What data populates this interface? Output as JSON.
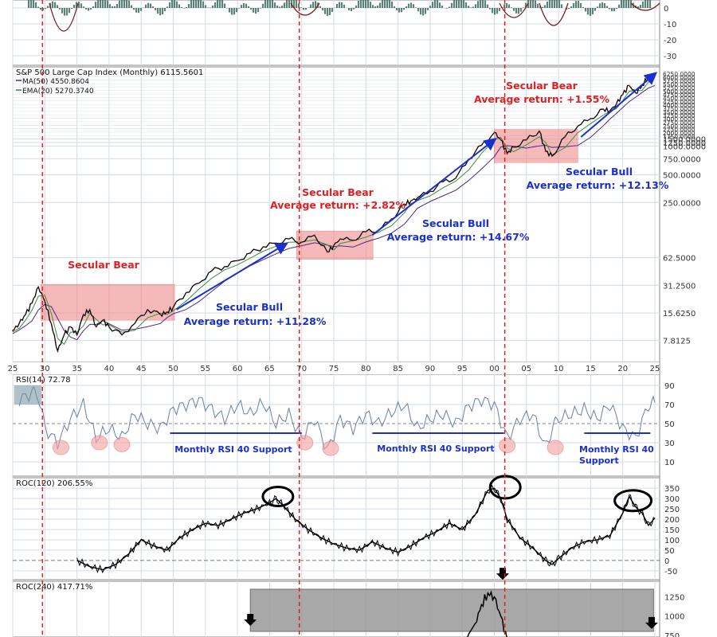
{
  "colors": {
    "grid": "#d3dce6",
    "panel_border": "#8a8a8a",
    "price": "#000000",
    "ma": "#4b2a8a",
    "ema": "#3b8f3b",
    "bear_red": "#e02020",
    "bull_blue": "#1a2fcf",
    "bear_box": "#f08080",
    "rsi_line": "#6a7fa8",
    "rsi_fill": "#6f8f9a",
    "circle_red": "#f4a0a0",
    "gray_box": "#9a9a9a"
  },
  "chart_data": [
    {
      "type": "line",
      "panel": "top_oscillator",
      "y_ticks": [
        "0",
        "-10",
        "-20",
        "-30"
      ],
      "ylim": [
        -35,
        5
      ]
    },
    {
      "type": "line",
      "panel": "price",
      "scale": "log",
      "legend_title": "S&P 500 Large Cap Index (Monthly) 6115.5601",
      "legend": [
        {
          "name": "MA(50) 4550.8604"
        },
        {
          "name": "EMA(20) 5270.3740"
        }
      ],
      "y_ticks": [
        "7.8125",
        "15.6250",
        "31.2500",
        "62.5000",
        "250.0000",
        "500.0000",
        "750.0000",
        "1000.0000",
        "1250.0000",
        "1500.0000",
        "1750.0000",
        "2000.0000",
        "2250.0000",
        "2500.0000",
        "2750.0000",
        "3000.0000",
        "3250.0000",
        "3500.0000",
        "3750.0000",
        "4000.0000",
        "4250.0000",
        "4500.0000",
        "4750.0000",
        "5000.0000",
        "5250.0000",
        "5500.0000",
        "5750.0000",
        "6000.0000",
        "6250.0000"
      ],
      "x_ticks": [
        "25",
        "30",
        "35",
        "40",
        "45",
        "50",
        "55",
        "60",
        "65",
        "70",
        "75",
        "80",
        "85",
        "90",
        "95",
        "00",
        "05",
        "10",
        "15",
        "20",
        "25"
      ],
      "x": [
        1925,
        1926,
        1927,
        1928,
        1929,
        1930,
        1931,
        1932,
        1933,
        1934,
        1935,
        1936,
        1937,
        1938,
        1939,
        1940,
        1942,
        1944,
        1946,
        1948,
        1949,
        1950,
        1952,
        1954,
        1956,
        1958,
        1960,
        1962,
        1964,
        1966,
        1968,
        1970,
        1972,
        1974,
        1975,
        1976,
        1978,
        1980,
        1982,
        1984,
        1986,
        1987,
        1988,
        1990,
        1992,
        1994,
        1996,
        1998,
        2000,
        2001,
        2002,
        2003,
        2005,
        2007,
        2008,
        2009,
        2011,
        2013,
        2015,
        2017,
        2018,
        2019,
        2020,
        2021,
        2022,
        2023,
        2024,
        2025
      ],
      "values": [
        10,
        12,
        15,
        20,
        30,
        21,
        12,
        6,
        9,
        11,
        9,
        15,
        17,
        11,
        13,
        11,
        9,
        12,
        17,
        15,
        16,
        18,
        26,
        33,
        45,
        50,
        58,
        70,
        82,
        90,
        100,
        92,
        110,
        72,
        85,
        100,
        97,
        120,
        125,
        165,
        240,
        260,
        280,
        330,
        420,
        460,
        740,
        1050,
        1450,
        1200,
        850,
        1000,
        1200,
        1500,
        900,
        800,
        1300,
        1700,
        2050,
        2600,
        2500,
        2950,
        3750,
        4700,
        3900,
        4700,
        5900,
        6100
      ],
      "annotations": [
        {
          "text": "Secular Bear",
          "color": "red"
        },
        {
          "text": "Secular Bull",
          "color": "blue"
        },
        {
          "text": "Average return:  +11.28%",
          "color": "blue"
        },
        {
          "text": "Secular Bear",
          "color": "red"
        },
        {
          "text": "Average return:  +2.82%",
          "color": "red"
        },
        {
          "text": "Secular Bull",
          "color": "blue"
        },
        {
          "text": "Average return:  +14.67%",
          "color": "blue"
        },
        {
          "text": "Secular Bear",
          "color": "red"
        },
        {
          "text": "Average return:  +1.55%",
          "color": "red"
        },
        {
          "text": "Secular Bull",
          "color": "blue"
        },
        {
          "text": "Average return:  +12.13%",
          "color": "blue"
        }
      ]
    },
    {
      "type": "line",
      "panel": "rsi",
      "title": "RSI(14) 72.78",
      "y_ticks": [
        "90",
        "70",
        "50",
        "30",
        "10"
      ],
      "ylim": [
        0,
        100
      ],
      "x": [
        1926,
        1928,
        1929,
        1930,
        1932,
        1934,
        1936,
        1938,
        1940,
        1942,
        1944,
        1946,
        1948,
        1950,
        1952,
        1954,
        1956,
        1958,
        1960,
        1962,
        1964,
        1966,
        1968,
        1970,
        1972,
        1974,
        1976,
        1978,
        1980,
        1982,
        1984,
        1986,
        1988,
        1990,
        1992,
        1994,
        1996,
        1998,
        2000,
        2002,
        2004,
        2006,
        2008,
        2009,
        2010,
        2012,
        2014,
        2016,
        2018,
        2020,
        2022,
        2024,
        2025
      ],
      "values": [
        75,
        82,
        80,
        45,
        30,
        55,
        70,
        35,
        45,
        35,
        60,
        50,
        45,
        65,
        70,
        75,
        65,
        55,
        70,
        60,
        72,
        50,
        60,
        35,
        55,
        22,
        55,
        45,
        60,
        50,
        62,
        70,
        45,
        55,
        60,
        50,
        68,
        75,
        70,
        35,
        55,
        60,
        25,
        45,
        55,
        60,
        65,
        55,
        70,
        45,
        35,
        70,
        72
      ],
      "annotations": [
        {
          "text": "Monthly RSI 40 Support"
        },
        {
          "text": "Monthly RSI 40 Support"
        },
        {
          "text": "Monthly RSI 40\nSupport"
        }
      ]
    },
    {
      "type": "line",
      "panel": "roc120",
      "title": "ROC(120) 206.55%",
      "y_ticks": [
        "350",
        "300",
        "250",
        "200",
        "150",
        "100",
        "50",
        "0",
        "-50"
      ],
      "ylim": [
        -70,
        380
      ],
      "x": [
        1935,
        1937,
        1939,
        1941,
        1943,
        1945,
        1947,
        1949,
        1951,
        1953,
        1955,
        1957,
        1959,
        1961,
        1963,
        1965,
        1966,
        1967,
        1969,
        1971,
        1973,
        1975,
        1977,
        1979,
        1981,
        1983,
        1985,
        1987,
        1989,
        1991,
        1993,
        1995,
        1997,
        1999,
        2000,
        2001,
        2002,
        2004,
        2006,
        2008,
        2009,
        2010,
        2012,
        2014,
        2016,
        2018,
        2020,
        2021,
        2022,
        2023,
        2024,
        2025
      ],
      "values": [
        0,
        -30,
        -45,
        -20,
        30,
        100,
        70,
        50,
        110,
        150,
        180,
        170,
        200,
        230,
        250,
        280,
        300,
        270,
        200,
        150,
        110,
        80,
        60,
        50,
        90,
        60,
        40,
        70,
        110,
        140,
        180,
        150,
        220,
        340,
        350,
        300,
        200,
        110,
        60,
        0,
        -20,
        10,
        60,
        90,
        100,
        120,
        230,
        310,
        260,
        230,
        170,
        206
      ]
    },
    {
      "type": "line",
      "panel": "roc240",
      "title": "ROC(240) 417.71%",
      "y_ticks": [
        "1250",
        "1000",
        "750"
      ],
      "ylim": [
        500,
        1400
      ],
      "x": [
        1993,
        1995,
        1997,
        1998,
        1999,
        2000,
        2001,
        2002,
        2003
      ],
      "values": [
        500,
        600,
        900,
        1150,
        1300,
        1250,
        1000,
        700,
        500
      ]
    }
  ]
}
